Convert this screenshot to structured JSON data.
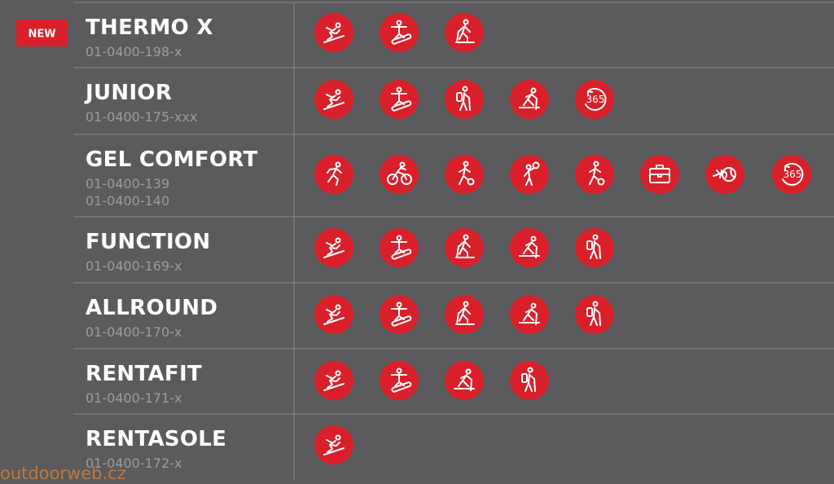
{
  "badge": "NEW",
  "rows": [
    {
      "name": "THERMO X",
      "codes": [
        "01-0400-198-x"
      ]
    },
    {
      "name": "JUNIOR",
      "codes": [
        "01-0400-175-xxx"
      ],
      "icon_text": "365"
    },
    {
      "name": "GEL COMFORT",
      "codes": [
        "01-0400-139",
        "01-0400-140"
      ],
      "icon_text": "365"
    },
    {
      "name": "FUNCTION",
      "codes": [
        "01-0400-169-x"
      ]
    },
    {
      "name": "ALLROUND",
      "codes": [
        "01-0400-170-x"
      ]
    },
    {
      "name": "RENTAFIT",
      "codes": [
        "01-0400-171-x"
      ]
    },
    {
      "name": "RENTASOLE",
      "codes": [
        "01-0400-172-x"
      ]
    }
  ],
  "watermark": "outdoorweb.cz"
}
